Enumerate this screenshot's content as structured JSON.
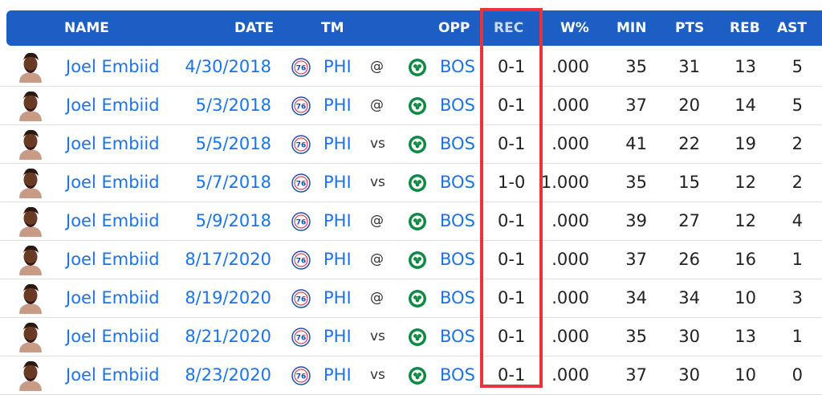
{
  "header": {
    "name": "NAME",
    "date": "DATE",
    "tm": "TM",
    "opp": "OPP",
    "rec": "REC",
    "wpct": "W%",
    "min": "MIN",
    "pts": "PTS",
    "reb": "REB",
    "ast": "AST"
  },
  "colors": {
    "header_bg": "#1d5ec5",
    "link": "#1a73e8",
    "highlight": "#e8333a"
  },
  "icons": {
    "avatar": "player-headshot-icon",
    "team": "76ers-logo-icon",
    "opponent": "celtics-logo-icon"
  },
  "rows": [
    {
      "player": "Joel Embiid",
      "date": "4/30/2018",
      "tm": "PHI",
      "loc": "@",
      "opp": "BOS",
      "rec": "0-1",
      "wpct": ".000",
      "min": "35",
      "pts": "31",
      "reb": "13",
      "ast": "5"
    },
    {
      "player": "Joel Embiid",
      "date": "5/3/2018",
      "tm": "PHI",
      "loc": "@",
      "opp": "BOS",
      "rec": "0-1",
      "wpct": ".000",
      "min": "37",
      "pts": "20",
      "reb": "14",
      "ast": "5"
    },
    {
      "player": "Joel Embiid",
      "date": "5/5/2018",
      "tm": "PHI",
      "loc": "vs",
      "opp": "BOS",
      "rec": "0-1",
      "wpct": ".000",
      "min": "41",
      "pts": "22",
      "reb": "19",
      "ast": "2"
    },
    {
      "player": "Joel Embiid",
      "date": "5/7/2018",
      "tm": "PHI",
      "loc": "vs",
      "opp": "BOS",
      "rec": "1-0",
      "wpct": "1.000",
      "min": "35",
      "pts": "15",
      "reb": "12",
      "ast": "2"
    },
    {
      "player": "Joel Embiid",
      "date": "5/9/2018",
      "tm": "PHI",
      "loc": "@",
      "opp": "BOS",
      "rec": "0-1",
      "wpct": ".000",
      "min": "39",
      "pts": "27",
      "reb": "12",
      "ast": "4"
    },
    {
      "player": "Joel Embiid",
      "date": "8/17/2020",
      "tm": "PHI",
      "loc": "@",
      "opp": "BOS",
      "rec": "0-1",
      "wpct": ".000",
      "min": "37",
      "pts": "26",
      "reb": "16",
      "ast": "1"
    },
    {
      "player": "Joel Embiid",
      "date": "8/19/2020",
      "tm": "PHI",
      "loc": "@",
      "opp": "BOS",
      "rec": "0-1",
      "wpct": ".000",
      "min": "34",
      "pts": "34",
      "reb": "10",
      "ast": "3"
    },
    {
      "player": "Joel Embiid",
      "date": "8/21/2020",
      "tm": "PHI",
      "loc": "vs",
      "opp": "BOS",
      "rec": "0-1",
      "wpct": ".000",
      "min": "35",
      "pts": "30",
      "reb": "13",
      "ast": "1"
    },
    {
      "player": "Joel Embiid",
      "date": "8/23/2020",
      "tm": "PHI",
      "loc": "vs",
      "opp": "BOS",
      "rec": "0-1",
      "wpct": ".000",
      "min": "37",
      "pts": "30",
      "reb": "10",
      "ast": "0"
    }
  ]
}
